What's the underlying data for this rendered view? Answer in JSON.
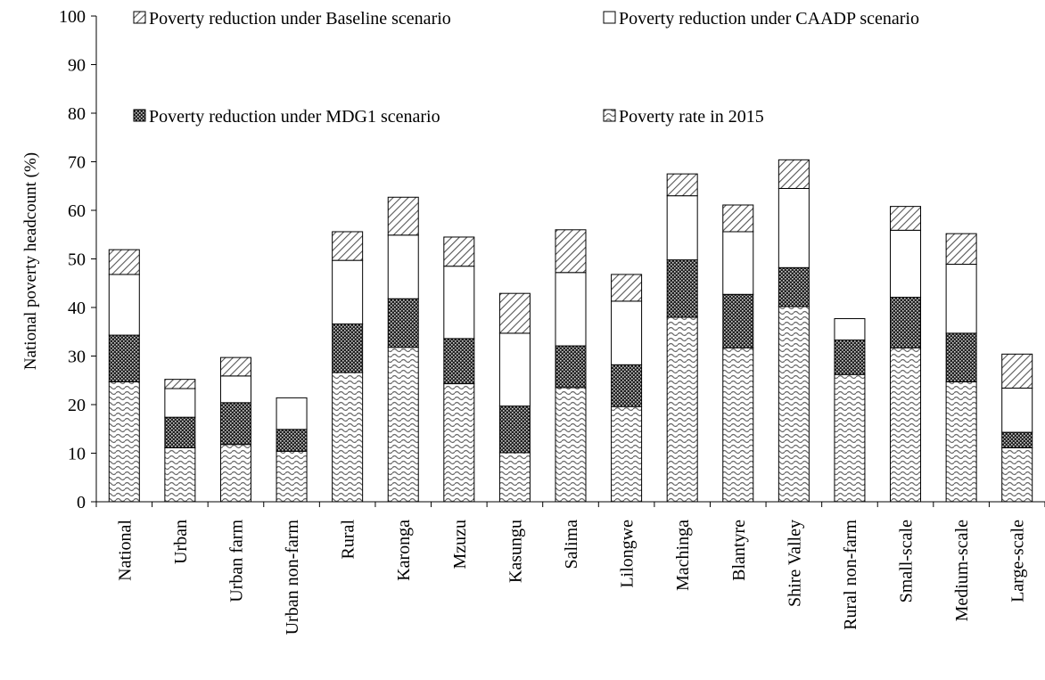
{
  "chart_data": {
    "type": "bar",
    "stacked": true,
    "ylabel": "National poverty headcount (%)",
    "ylim": [
      0,
      100
    ],
    "yticks": [
      0,
      10,
      20,
      30,
      40,
      50,
      60,
      70,
      80,
      90,
      100
    ],
    "grid": false,
    "legend_position": "top",
    "categories": [
      "National",
      "Urban",
      "Urban farm",
      "Urban non-farm",
      "Rural",
      "Karonga",
      "Mzuzu",
      "Kasungu",
      "Salima",
      "Lilongwe",
      "Machinga",
      "Blantyre",
      "Shire Valley",
      "Rural non-farm",
      "Small-scale",
      "Medium-scale",
      "Large-scale"
    ],
    "legend": [
      {
        "label": "Poverty reduction under Baseline scenario",
        "pattern": "diagonal-hatch"
      },
      {
        "label": "Poverty reduction under CAADP  scenario",
        "pattern": "white"
      },
      {
        "label": "Poverty reduction under MDG1  scenario",
        "pattern": "dots"
      },
      {
        "label": "Poverty rate in  2015",
        "pattern": "wave"
      }
    ],
    "series": [
      {
        "name": "Poverty rate in  2015",
        "pattern": "wave",
        "values": [
          24.7,
          11.1,
          11.8,
          10.4,
          26.6,
          31.8,
          24.3,
          10.1,
          23.5,
          19.6,
          38.0,
          31.7,
          40.2,
          26.2,
          31.7,
          24.7,
          11.1
        ]
      },
      {
        "name": "Poverty reduction under MDG1  scenario",
        "pattern": "dots",
        "values": [
          9.6,
          6.3,
          8.6,
          4.5,
          10.0,
          10.0,
          9.3,
          9.6,
          8.6,
          8.6,
          11.8,
          11.0,
          8.0,
          7.1,
          10.4,
          10.0,
          3.2
        ]
      },
      {
        "name": "Poverty reduction under CAADP  scenario",
        "pattern": "white",
        "values": [
          12.5,
          5.9,
          5.5,
          6.5,
          13.1,
          13.1,
          14.9,
          15.0,
          15.1,
          13.1,
          13.2,
          12.9,
          16.3,
          4.4,
          13.8,
          14.2,
          9.1
        ]
      },
      {
        "name": "Poverty reduction under Baseline scenario",
        "pattern": "diagonal-hatch",
        "values": [
          5.1,
          1.9,
          3.8,
          0,
          5.9,
          7.8,
          6.0,
          8.2,
          8.8,
          5.5,
          4.5,
          5.5,
          5.9,
          0,
          4.9,
          6.3,
          7.0
        ]
      }
    ]
  }
}
